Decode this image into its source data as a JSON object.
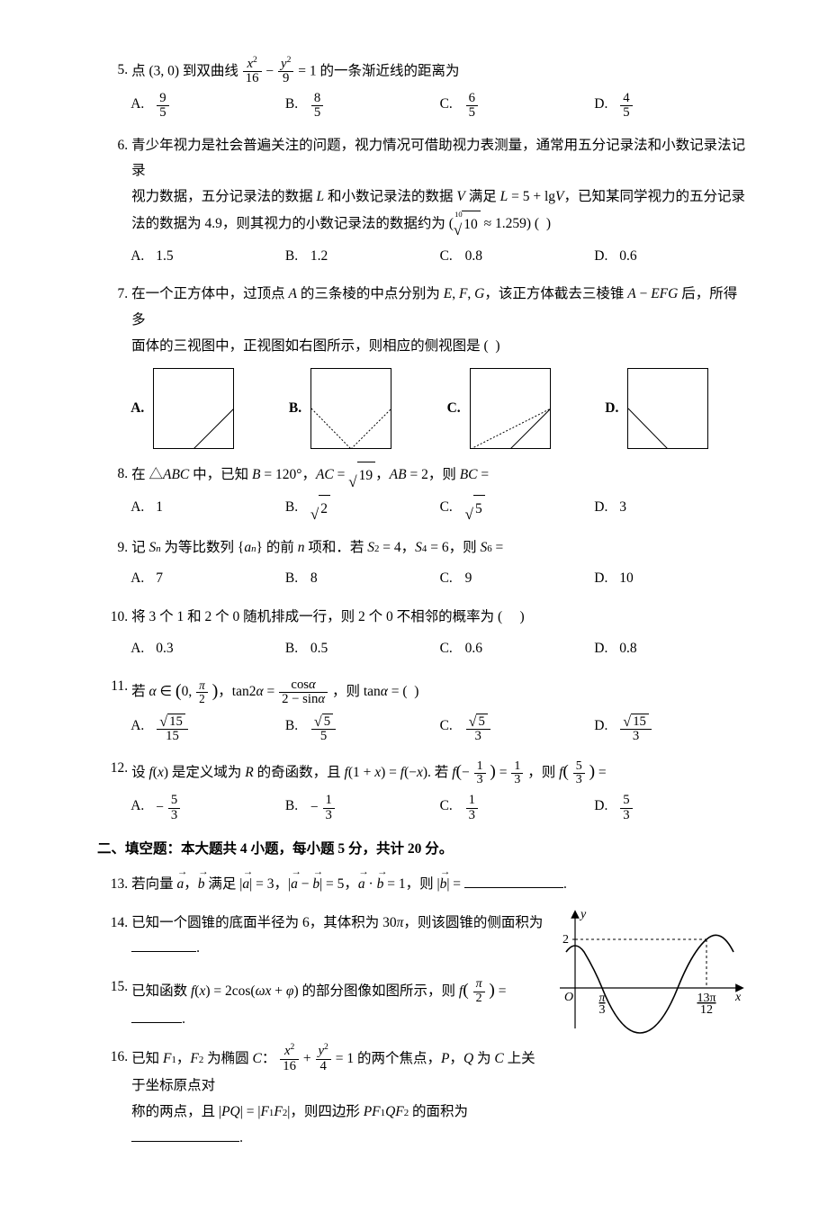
{
  "q5": {
    "num": "5.",
    "pre": "点 (3, 0) 到双曲线 ",
    "lhs_num": "<span class='it'>x</span><span class='sup'>2</span>",
    "lhs_den": "16",
    "minus": "−",
    "rhs_num": "<span class='it'>y</span><span class='sup'>2</span>",
    "rhs_den": "9",
    "eq": "= 1 的一条渐近线的距离为",
    "A_num": "9",
    "A_den": "5",
    "B_num": "8",
    "B_den": "5",
    "C_num": "6",
    "C_den": "5",
    "D_num": "4",
    "D_den": "5"
  },
  "q6": {
    "num": "6.",
    "stem_line1": "青少年视力是社会普遍关注的问题，视力情况可借助视力表测量，通常用五分记录法和小数记录法记录",
    "stem_line2": "视力数据，五分记录法的数据 <span class='it'>L</span> 和小数记录法的数据 <span class='it'>V</span> 满足 <span class='it'>L</span> = 5 + lg<span class='it'>V</span>，已知某同学视力的五分记录",
    "stem_line3": "法的数据为 4.9，则其视力的小数记录法的数据约为 (<span class='root10'><span class='idx'>10</span><span class='sqrt'><span class='rad'>√</span><span class='body'>10</span></span></span> ≈ 1.259) (&nbsp;&nbsp;)",
    "A": "1.5",
    "B": "1.2",
    "C": "0.8",
    "D": "0.6"
  },
  "q7": {
    "num": "7.",
    "stem_line1": "在一个正方体中，过顶点 <span class='it'>A</span> 的三条棱的中点分别为 <span class='it'>E</span>, <span class='it'>F</span>, <span class='it'>G</span>，该正方体截去三棱锥 <span class='it'>A</span> − <span class='it'>EFG</span> 后，所得多",
    "stem_line2": "面体的三视图中，正视图如右图所示，则相应的侧视图是 (&nbsp;&nbsp;)"
  },
  "q8": {
    "num": "8.",
    "stem": "在 △<span class='it'>ABC</span> 中，已知 <span class='it'>B</span> = 120°，<span class='it'>AC</span> = <span class='sqrt'><span class='rad'>√</span><span class='body'>19</span></span>，<span class='it'>AB</span> = 2，则 <span class='it'>BC</span> =",
    "A": "1",
    "B": "<span class='sqrt'><span class='rad'>√</span><span class='body'>2</span></span>",
    "C": "<span class='sqrt'><span class='rad'>√</span><span class='body'>5</span></span>",
    "D": "3"
  },
  "q9": {
    "num": "9.",
    "stem": "记 <span class='it'>S<span class='sub'>n</span></span> 为等比数列 {<span class='it'>a<span class='sub'>n</span></span>} 的前 <span class='it'>n</span> 项和．若 <span class='it'>S</span><span class='sub'>2</span> = 4，<span class='it'>S</span><span class='sub'>4</span> = 6，则 <span class='it'>S</span><span class='sub'>6</span> =",
    "A": "7",
    "B": "8",
    "C": "9",
    "D": "10"
  },
  "q10": {
    "num": "10.",
    "stem": "将 3 个 1 和 2 个 0 随机排成一行，则 2 个 0 不相邻的概率为 (&nbsp;&nbsp;&nbsp;&nbsp;&nbsp;)",
    "A": "0.3",
    "B": "0.5",
    "C": "0.6",
    "D": "0.8"
  },
  "q11": {
    "num": "11.",
    "stem_pre": "若 <span class='it'>α</span> ∈ <span style='font-size:1.3em;position:relative;top:0.06em'>(</span>0, ",
    "piover2_num": "<span class='it'>π</span>",
    "piover2_den": "2",
    "stem_mid": "<span style='font-size:1.3em;position:relative;top:0.06em'>)</span>，tan2<span class='it'>α</span> = ",
    "r_num": "cos<span class='it'>α</span>",
    "r_den": "2 − sin<span class='it'>α</span>",
    "stem_post": "，则 tan<span class='it'>α</span> = (&nbsp;&nbsp;)",
    "A_num": "<span class='sqrt'><span class='rad'>√</span><span class='body'>15</span></span>",
    "A_den": "15",
    "B_num": "<span class='sqrt'><span class='rad'>√</span><span class='body'>5</span></span>",
    "B_den": "5",
    "C_num": "<span class='sqrt'><span class='rad'>√</span><span class='body'>5</span></span>",
    "C_den": "3",
    "D_num": "<span class='sqrt'><span class='rad'>√</span><span class='body'>15</span></span>",
    "D_den": "3"
  },
  "q12": {
    "num": "12.",
    "stem_pre": "设 <span class='it'>f</span>(<span class='it'>x</span>) 是定义域为 <span class='it'>R</span> 的奇函数，且 <span class='it'>f</span>(1 + <span class='it'>x</span>) = <span class='it'>f</span>(−<span class='it'>x</span>). 若 <span class='it'>f</span><span style='font-size:1.25em'>(</span>−",
    "a_num": "1",
    "a_den": "3",
    "stem_mid": "<span style='font-size:1.25em'>)</span> = ",
    "b_num": "1",
    "b_den": "3",
    "stem_mid2": "，则 <span class='it'>f</span><span style='font-size:1.25em'>(</span>",
    "c_num": "5",
    "c_den": "3",
    "stem_post": "<span style='font-size:1.25em'>)</span> =",
    "A_pre": "− ",
    "A_num": "5",
    "A_den": "3",
    "B_pre": "− ",
    "B_num": "1",
    "B_den": "3",
    "C_num": "1",
    "C_den": "3",
    "D_num": "5",
    "D_den": "3"
  },
  "section2": "二、填空题：本大题共 4 小题，每小题 5 分，共计 20 分。",
  "q13": {
    "num": "13.",
    "stem": "若向量 <span class='vec it'>a</span>，<span class='vec it'>b</span> 满足 |<span class='vec it'>a</span>| = 3，|<span class='vec it'>a</span> − <span class='vec it'>b</span>| = 5，<span class='vec it'>a</span> · <span class='vec it'>b</span> = 1，则 |<span class='vec it'>b</span>| = ",
    "blank_w": "110"
  },
  "q14": {
    "num": "14.",
    "stem": "已知一个圆锥的底面半径为 6，其体积为 30<span class='it'>π</span>，则该圆锥的侧面积为 ",
    "blank_w": "72"
  },
  "q15": {
    "num": "15.",
    "stem_pre": "已知函数 <span class='it'>f</span>(<span class='it'>x</span>) = 2cos(<span class='it'>ωx</span> + <span class='it'>φ</span>) 的部分图像如图所示，则 <span class='it'>f</span><span style='font-size:1.25em'>(</span>",
    "p_num": "<span class='it'>π</span>",
    "p_den": "2",
    "stem_post": "<span style='font-size:1.25em'>)</span> = ",
    "blank_w": "56",
    "graph": {
      "y_label": "y",
      "x_label": "x",
      "origin": "O",
      "y_tick": "2",
      "x_tick1_num": "π",
      "x_tick1_den": "3",
      "x_tick2_num": "13π",
      "x_tick2_den": "12",
      "axis_color": "#000000",
      "curve_color": "#000000",
      "dash_color": "#000000",
      "stroke_width": 1.2
    }
  },
  "q16": {
    "num": "16.",
    "stem_pre": "已知 <span class='it'>F</span><span class='sub'>1</span>，<span class='it'>F</span><span class='sub'>2</span> 为椭圆 <span class='it'>C</span>：",
    "e1_num": "<span class='it'>x</span><span class='sup'>2</span>",
    "e1_den": "16",
    "plus": " + ",
    "e2_num": "<span class='it'>y</span><span class='sup'>2</span>",
    "e2_den": "4",
    "stem_mid": " = 1 的两个焦点，<span class='it'>P</span>，<span class='it'>Q</span> 为 <span class='it'>C</span> 上关于坐标原点对",
    "stem_line2": "称的两点，且 |<span class='it'>PQ</span>| = |<span class='it'>F</span><span class='sub'>1</span><span class='it'>F</span><span class='sub'>2</span>|，则四边形 <span class='it'>PF</span><span class='sub'>1</span><span class='it'>QF</span><span class='sub'>2</span> 的面积为 ",
    "blank_w": "120"
  },
  "letters": {
    "A": "A.",
    "B": "B.",
    "C": "C.",
    "D": "D."
  }
}
